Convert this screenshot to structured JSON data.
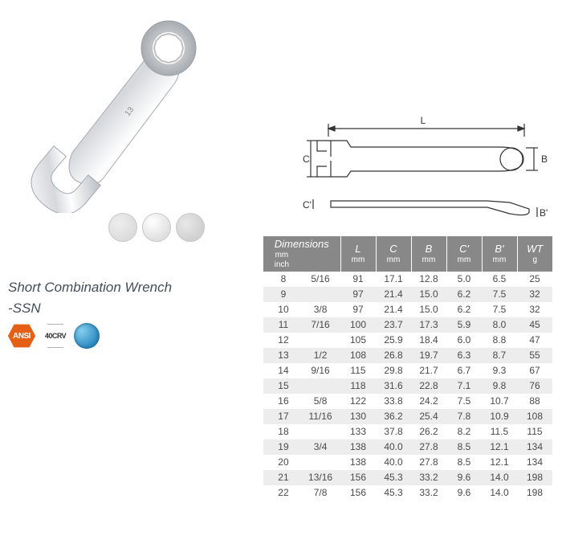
{
  "product": {
    "title_line1": "Short Combination Wrench",
    "title_line2": "-SSN"
  },
  "badges": {
    "ansi": "ANSI",
    "crv": "40CRV"
  },
  "diagram_labels": {
    "L": "L",
    "B": "B",
    "C": "C",
    "Cp": "C'",
    "Bp": "B'"
  },
  "table": {
    "header": {
      "dimensions": "Dimensions",
      "dim_mm": "mm",
      "dim_inch": "inch",
      "L": "L",
      "L_unit": "mm",
      "C": "C",
      "C_unit": "mm",
      "B": "B",
      "B_unit": "mm",
      "Cp": "C'",
      "Cp_unit": "mm",
      "Bp": "B'",
      "Bp_unit": "mm",
      "WT": "WT",
      "WT_unit": "g"
    },
    "rows": [
      {
        "mm": "8",
        "inch": "5/16",
        "L": "91",
        "C": "17.1",
        "B": "12.8",
        "Cp": "5.0",
        "Bp": "6.5",
        "WT": "25"
      },
      {
        "mm": "9",
        "inch": "",
        "L": "97",
        "C": "21.4",
        "B": "15.0",
        "Cp": "6.2",
        "Bp": "7.5",
        "WT": "32"
      },
      {
        "mm": "10",
        "inch": "3/8",
        "L": "97",
        "C": "21.4",
        "B": "15.0",
        "Cp": "6.2",
        "Bp": "7.5",
        "WT": "32"
      },
      {
        "mm": "11",
        "inch": "7/16",
        "L": "100",
        "C": "23.7",
        "B": "17.3",
        "Cp": "5.9",
        "Bp": "8.0",
        "WT": "45"
      },
      {
        "mm": "12",
        "inch": "",
        "L": "105",
        "C": "25.9",
        "B": "18.4",
        "Cp": "6.0",
        "Bp": "8.8",
        "WT": "47"
      },
      {
        "mm": "13",
        "inch": "1/2",
        "L": "108",
        "C": "26.8",
        "B": "19.7",
        "Cp": "6.3",
        "Bp": "8.7",
        "WT": "55"
      },
      {
        "mm": "14",
        "inch": "9/16",
        "L": "115",
        "C": "29.8",
        "B": "21.7",
        "Cp": "6.7",
        "Bp": "9.3",
        "WT": "67"
      },
      {
        "mm": "15",
        "inch": "",
        "L": "118",
        "C": "31.6",
        "B": "22.8",
        "Cp": "7.1",
        "Bp": "9.8",
        "WT": "76"
      },
      {
        "mm": "16",
        "inch": "5/8",
        "L": "122",
        "C": "33.8",
        "B": "24.2",
        "Cp": "7.5",
        "Bp": "10.7",
        "WT": "88"
      },
      {
        "mm": "17",
        "inch": "11/16",
        "L": "130",
        "C": "36.2",
        "B": "25.4",
        "Cp": "7.8",
        "Bp": "10.9",
        "WT": "108"
      },
      {
        "mm": "18",
        "inch": "",
        "L": "133",
        "C": "37.8",
        "B": "26.2",
        "Cp": "8.2",
        "Bp": "11.5",
        "WT": "115"
      },
      {
        "mm": "19",
        "inch": "3/4",
        "L": "138",
        "C": "40.0",
        "B": "27.8",
        "Cp": "8.5",
        "Bp": "12.1",
        "WT": "134"
      },
      {
        "mm": "20",
        "inch": "",
        "L": "138",
        "C": "40.0",
        "B": "27.8",
        "Cp": "8.5",
        "Bp": "12.1",
        "WT": "134"
      },
      {
        "mm": "21",
        "inch": "13/16",
        "L": "156",
        "C": "45.3",
        "B": "33.2",
        "Cp": "9.6",
        "Bp": "14.0",
        "WT": "198"
      },
      {
        "mm": "22",
        "inch": "7/8",
        "L": "156",
        "C": "45.3",
        "B": "33.2",
        "Cp": "9.6",
        "Bp": "14.0",
        "WT": "198"
      }
    ],
    "alt_row_color": "#ededed",
    "header_bg": "#888888",
    "header_fg": "#ffffff",
    "text_color": "#4a4a4a"
  }
}
